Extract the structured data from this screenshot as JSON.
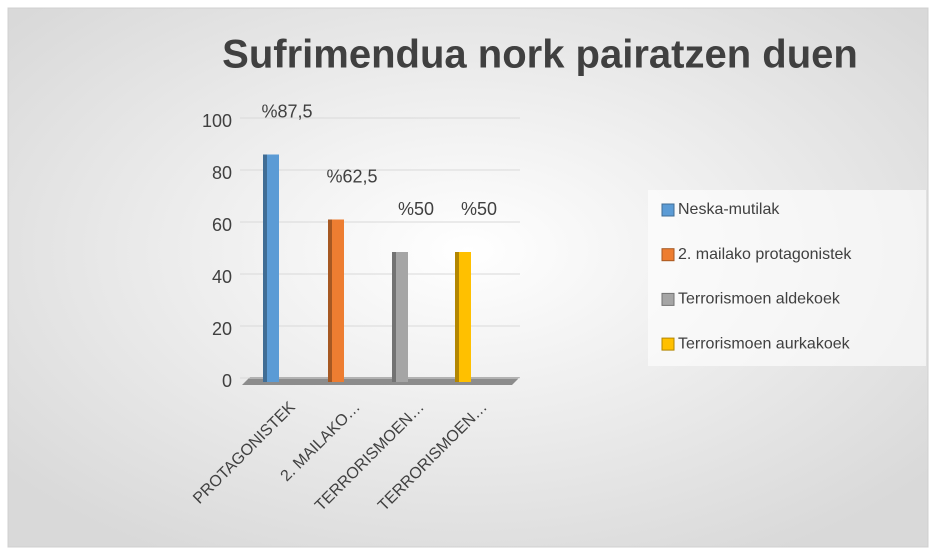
{
  "chart_data": {
    "type": "bar",
    "title": "Sufrimendua nork pairatzen duen",
    "categories": [
      "PROTAGONISTEK",
      "2. MAILAKO…",
      "TERRORISMOEN…",
      "TERRORISMOEN…"
    ],
    "series": [
      {
        "name": "Neska-mutilak",
        "color": "#5b9bd5",
        "values": [
          87.5,
          null,
          null,
          null
        ],
        "value_labels": [
          "%87,5",
          null,
          null,
          null
        ]
      },
      {
        "name": "2. mailako protagonistek",
        "color": "#ed7d31",
        "values": [
          null,
          62.5,
          null,
          null
        ],
        "value_labels": [
          null,
          "%62,5",
          null,
          null
        ]
      },
      {
        "name": "Terrorismoen aldekoek",
        "color": "#a5a5a5",
        "values": [
          null,
          null,
          50,
          null
        ],
        "value_labels": [
          null,
          null,
          "%50",
          null
        ]
      },
      {
        "name": "Terrorismoen aurkakoek",
        "color": "#ffc000",
        "values": [
          null,
          null,
          null,
          50
        ],
        "value_labels": [
          null,
          null,
          null,
          "%50"
        ]
      }
    ],
    "ylim": [
      0,
      100
    ],
    "yticks": [
      0,
      20,
      40,
      60,
      80,
      100
    ],
    "grid": true,
    "legend": "right"
  }
}
